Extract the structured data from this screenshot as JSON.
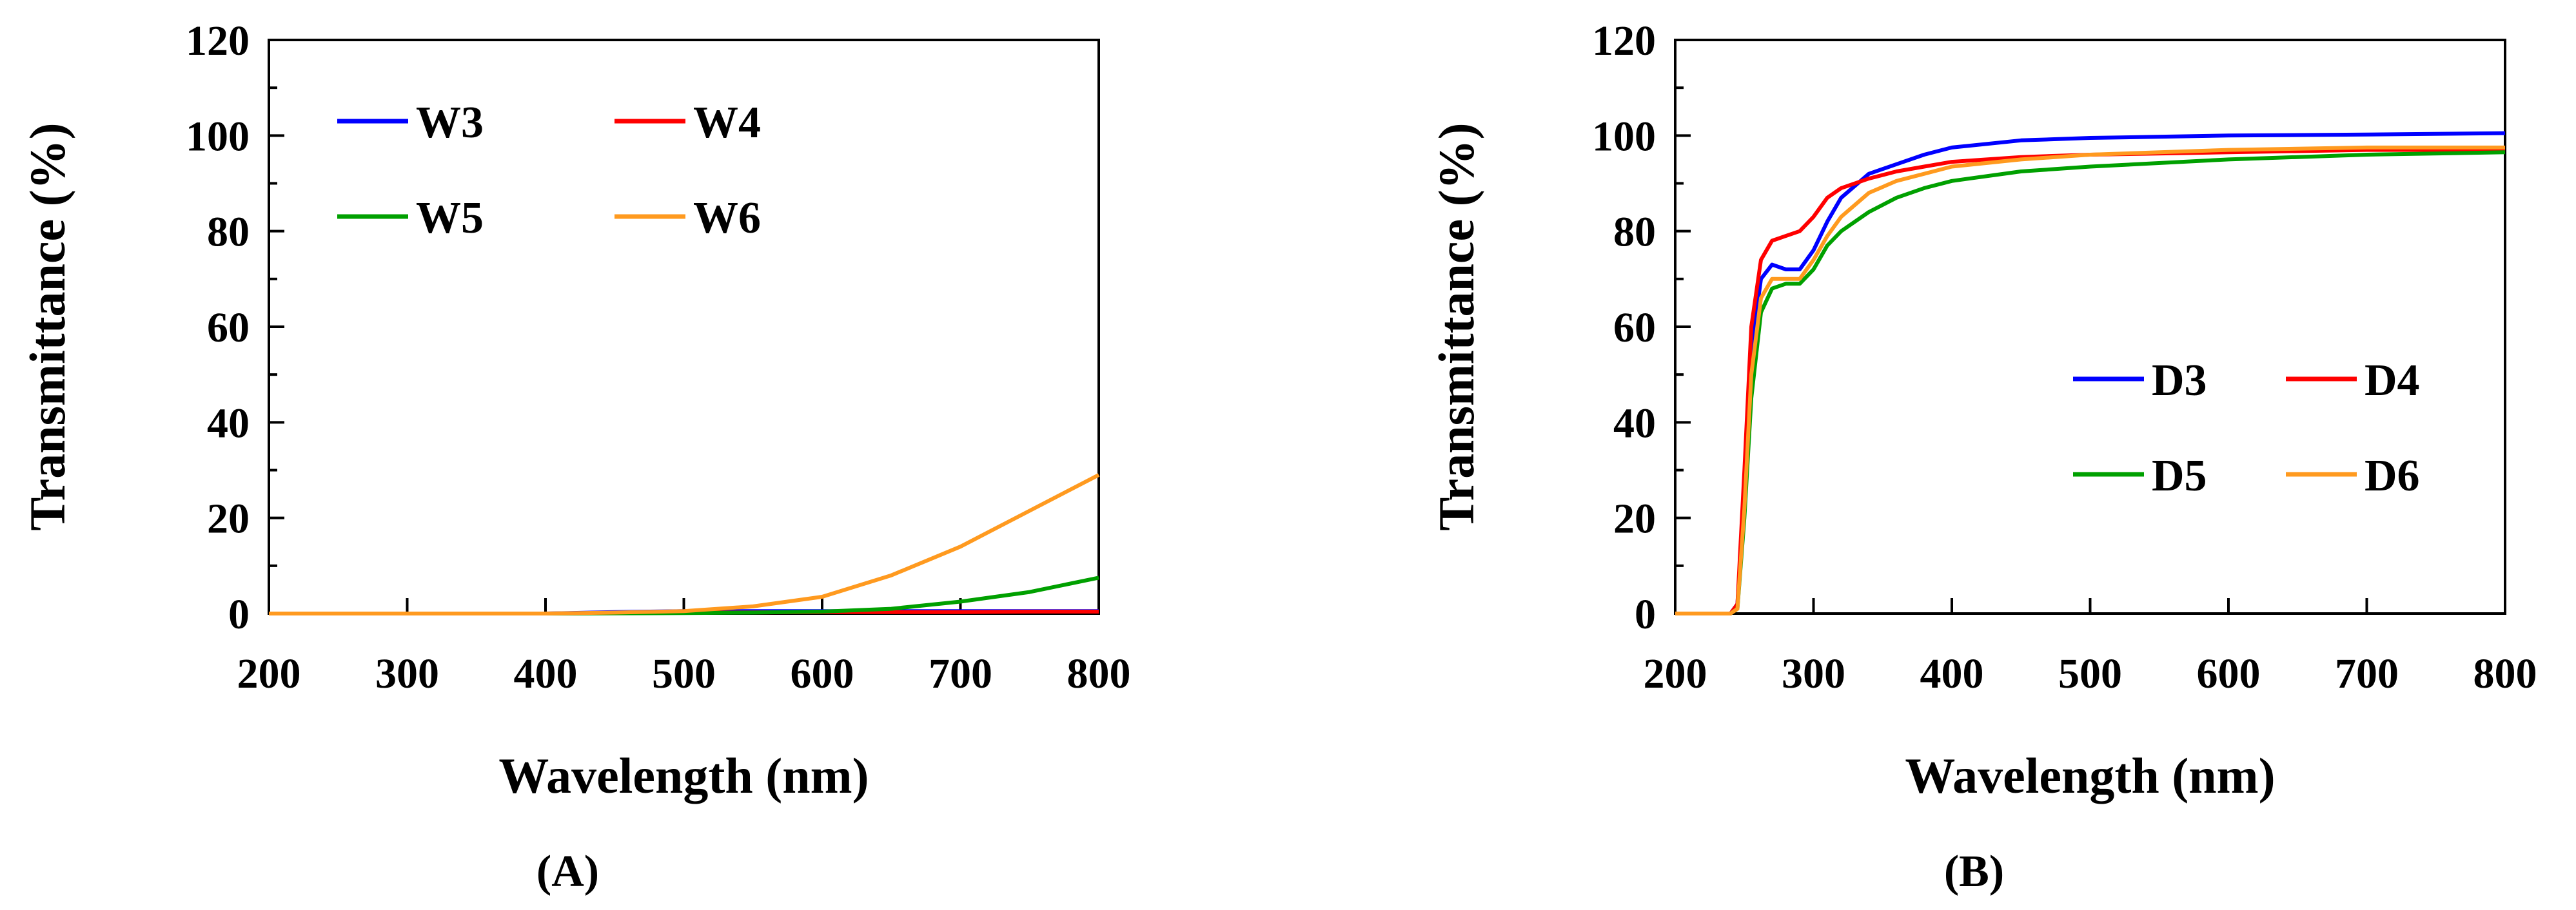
{
  "chart_data": [
    {
      "type": "line",
      "panel_label": "(A)",
      "xlabel": "Wavelength (nm)",
      "ylabel": "Transmittance (%)",
      "xlim": [
        200,
        800
      ],
      "ylim": [
        0,
        120
      ],
      "xticks": [
        200,
        300,
        400,
        500,
        600,
        700,
        800
      ],
      "yticks": [
        0,
        20,
        40,
        60,
        80,
        100,
        120
      ],
      "grid": false,
      "legend_position": "top-left",
      "series": [
        {
          "name": "W3",
          "color": "#0000ff",
          "x": [
            200,
            300,
            400,
            450,
            500,
            550,
            600,
            650,
            700,
            750,
            800
          ],
          "y": [
            0,
            0,
            0,
            0.3,
            0.5,
            0.5,
            0.5,
            0.5,
            0.5,
            0.5,
            0.5
          ]
        },
        {
          "name": "W4",
          "color": "#ff0000",
          "x": [
            200,
            300,
            400,
            500,
            600,
            700,
            750,
            800
          ],
          "y": [
            0,
            0,
            0,
            0.2,
            0.3,
            0.3,
            0.4,
            0.4
          ]
        },
        {
          "name": "W5",
          "color": "#00a000",
          "x": [
            200,
            400,
            500,
            550,
            600,
            650,
            700,
            750,
            800
          ],
          "y": [
            0,
            0,
            0.1,
            0.2,
            0.4,
            1,
            2.5,
            4.5,
            7.5
          ]
        },
        {
          "name": "W6",
          "color": "#ff9a1f",
          "x": [
            200,
            400,
            450,
            500,
            550,
            600,
            650,
            700,
            750,
            800
          ],
          "y": [
            0,
            0,
            0.2,
            0.5,
            1.5,
            3.5,
            8,
            14,
            21.5,
            29
          ]
        }
      ]
    },
    {
      "type": "line",
      "panel_label": "(B)",
      "xlabel": "Wavelength (nm)",
      "ylabel": "Transmittance (%)",
      "xlim": [
        200,
        800
      ],
      "ylim": [
        0,
        120
      ],
      "xticks": [
        200,
        300,
        400,
        500,
        600,
        700,
        800
      ],
      "yticks": [
        0,
        20,
        40,
        60,
        80,
        100,
        120
      ],
      "grid": false,
      "legend_position": "center-right",
      "series": [
        {
          "name": "D3",
          "color": "#0000ff",
          "x": [
            200,
            240,
            245,
            250,
            255,
            262,
            270,
            280,
            290,
            300,
            310,
            320,
            340,
            360,
            380,
            400,
            450,
            500,
            600,
            700,
            800
          ],
          "y": [
            0,
            0,
            2,
            25,
            55,
            70,
            73,
            72,
            72,
            76,
            82,
            87,
            92,
            94,
            96,
            97.5,
            99,
            99.5,
            100,
            100.2,
            100.5
          ]
        },
        {
          "name": "D4",
          "color": "#ff0000",
          "x": [
            200,
            240,
            245,
            250,
            255,
            262,
            270,
            280,
            290,
            300,
            310,
            320,
            340,
            360,
            380,
            400,
            450,
            500,
            600,
            700,
            800
          ],
          "y": [
            0,
            0,
            2,
            30,
            60,
            74,
            78,
            79,
            80,
            83,
            87,
            89,
            91,
            92.5,
            93.5,
            94.5,
            95.5,
            96,
            96.5,
            97,
            97
          ]
        },
        {
          "name": "D5",
          "color": "#00a000",
          "x": [
            200,
            240,
            245,
            250,
            255,
            262,
            270,
            280,
            290,
            300,
            310,
            320,
            340,
            360,
            380,
            400,
            450,
            500,
            600,
            700,
            800
          ],
          "y": [
            0,
            0,
            1,
            20,
            45,
            63,
            68,
            69,
            69,
            72,
            77,
            80,
            84,
            87,
            89,
            90.5,
            92.5,
            93.5,
            95,
            96,
            96.5
          ]
        },
        {
          "name": "D6",
          "color": "#ff9a1f",
          "x": [
            200,
            240,
            245,
            250,
            255,
            262,
            270,
            280,
            290,
            300,
            310,
            320,
            340,
            360,
            380,
            400,
            450,
            500,
            600,
            700,
            800
          ],
          "y": [
            0,
            0,
            1,
            22,
            50,
            66,
            70,
            70,
            70,
            74,
            79,
            83,
            88,
            90.5,
            92,
            93.5,
            95,
            96,
            97,
            97.5,
            97.5
          ]
        }
      ]
    }
  ]
}
